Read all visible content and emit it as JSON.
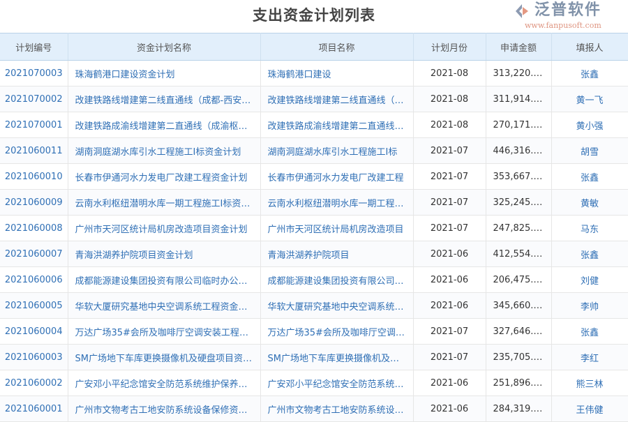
{
  "page": {
    "title": "支出资金计划列表"
  },
  "table": {
    "columns": [
      "计划编号",
      "资金计划名称",
      "项目名称",
      "计划月份",
      "申请金额",
      "填报人"
    ],
    "rows": [
      {
        "code": "2021070003",
        "plan": "珠海鹤港口建设资金计划",
        "project": "珠海鹤港口建设",
        "month": "2021-08",
        "amount": "313,220.00",
        "person": "张鑫"
      },
      {
        "code": "2021070002",
        "plan": "改建铁路线增建第二线直通线（成都-西安…",
        "project": "改建铁路线增建第二线直通线（…",
        "month": "2021-08",
        "amount": "311,914.00",
        "person": "黄一飞"
      },
      {
        "code": "2021070001",
        "plan": "改建铁路成渝线增建第二直通线（成渝枢…",
        "project": "改建铁路成渝线增建第二直通线…",
        "month": "2021-08",
        "amount": "270,171.00",
        "person": "黄小强"
      },
      {
        "code": "2021060011",
        "plan": "湖南洞庭湖水库引水工程施工Ⅰ标资金计划",
        "project": "湖南洞庭湖水库引水工程施工Ⅰ标",
        "month": "2021-07",
        "amount": "446,316.00",
        "person": "胡雪"
      },
      {
        "code": "2021060010",
        "plan": "长春市伊通河水力发电厂改建工程资金计划",
        "project": "长春市伊通河水力发电厂改建工程",
        "month": "2021-07",
        "amount": "353,667.00",
        "person": "张鑫"
      },
      {
        "code": "2021060009",
        "plan": "云南水利枢纽潜明水库一期工程施工Ⅰ标资…",
        "project": "云南水利枢纽潜明水库一期工程…",
        "month": "2021-07",
        "amount": "325,245.00",
        "person": "黄敏"
      },
      {
        "code": "2021060008",
        "plan": "广州市天河区统计局机房改造项目资金计划",
        "project": "广州市天河区统计局机房改造项目",
        "month": "2021-07",
        "amount": "247,825.00",
        "person": "马东"
      },
      {
        "code": "2021060007",
        "plan": "青海洪湖养护院项目资金计划",
        "project": "青海洪湖养护院项目",
        "month": "2021-06",
        "amount": "412,554.00",
        "person": "张鑫"
      },
      {
        "code": "2021060006",
        "plan": "成都能源建设集团投资有限公司临时办公…",
        "project": "成都能源建设集团投资有限公司…",
        "month": "2021-06",
        "amount": "206,475.00",
        "person": "刘健"
      },
      {
        "code": "2021060005",
        "plan": "华软大厦研究基地中央空调系统工程资金…",
        "project": "华软大厦研究基地中央空调系统…",
        "month": "2021-06",
        "amount": "345,660.00",
        "person": "李帅"
      },
      {
        "code": "2021060004",
        "plan": "万达广场35#会所及咖啡厅空调安装工程资…",
        "project": "万达广场35#会所及咖啡厅空调…",
        "month": "2021-07",
        "amount": "327,646.00",
        "person": "张鑫"
      },
      {
        "code": "2021060003",
        "plan": "SM广场地下车库更换摄像机及硬盘项目资…",
        "project": "SM广场地下车库更换摄像机及…",
        "month": "2021-07",
        "amount": "235,705.00",
        "person": "李红"
      },
      {
        "code": "2021060002",
        "plan": "广安邓小平纪念馆安全防范系统维护保养…",
        "project": "广安邓小平纪念馆安全防范系统…",
        "month": "2021-06",
        "amount": "251,896.00",
        "person": "熊三林"
      },
      {
        "code": "2021060001",
        "plan": "广州市文物考古工地安防系统设备保修资…",
        "project": "广州市文物考古工地安防系统设…",
        "month": "2021-06",
        "amount": "284,319.00",
        "person": "王伟健"
      }
    ]
  },
  "watermark": {
    "brand": "泛普软件",
    "url": "www.fanpusoft.com"
  },
  "colors": {
    "header_bg": "#e2effb",
    "link": "#2f6fb5",
    "title": "#444444"
  }
}
